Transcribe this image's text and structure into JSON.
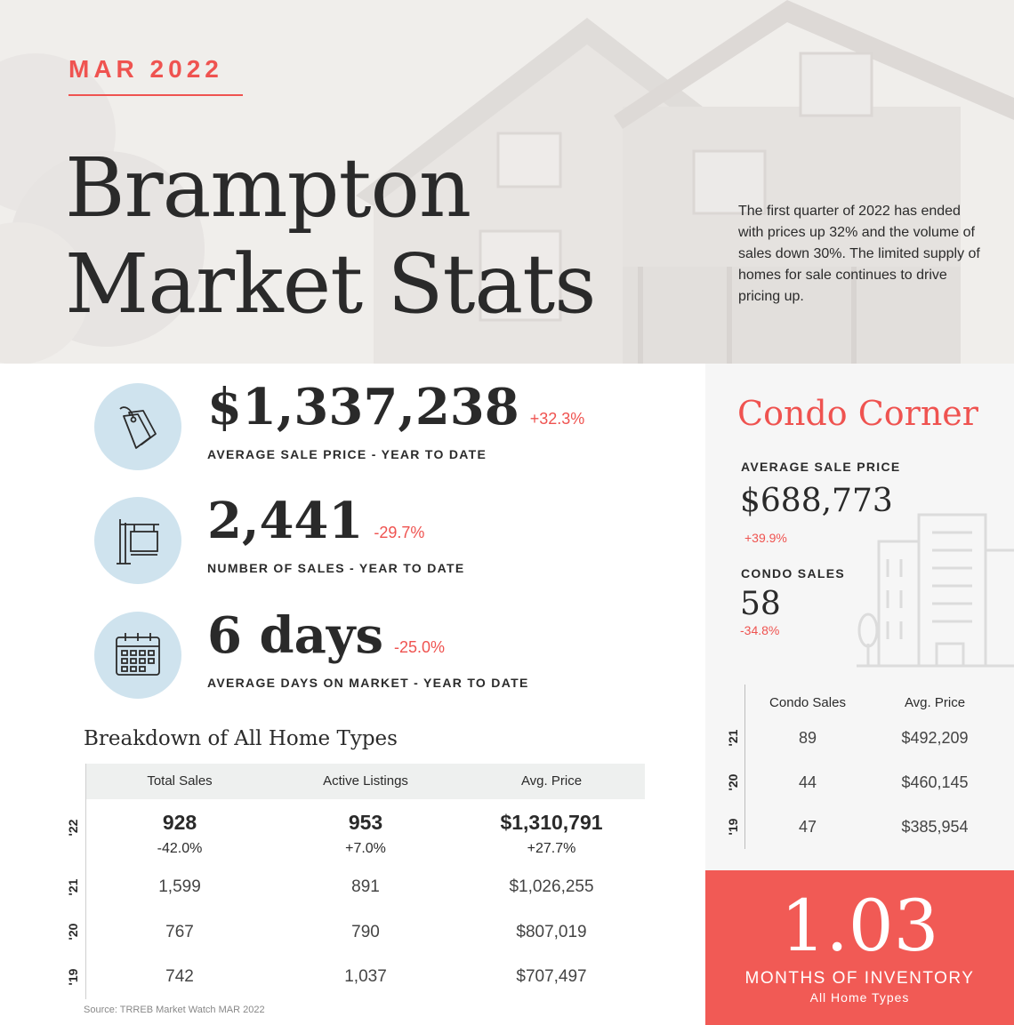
{
  "header": {
    "month": "MAR 2022",
    "title_line1": "Brampton",
    "title_line2": "Market Stats",
    "intro": "The first quarter of 2022 has ended with prices up 32% and the volume of sales down 30%. The limited supply of homes for sale continues to drive pricing up."
  },
  "kpis": [
    {
      "icon": "price-tag-icon",
      "value": "$1,337,238",
      "change": "+32.3%",
      "label": "AVERAGE SALE PRICE - YEAR TO DATE"
    },
    {
      "icon": "for-sale-sign-icon",
      "value": "2,441",
      "change": "-29.7%",
      "label": "NUMBER OF SALES - YEAR TO DATE"
    },
    {
      "icon": "calendar-icon",
      "value": "6 days",
      "change": "-25.0%",
      "label": "AVERAGE DAYS ON MARKET - YEAR TO DATE"
    }
  ],
  "breakdown": {
    "title": "Breakdown of All Home Types",
    "columns": [
      "Total Sales",
      "Active Listings",
      "Avg. Price"
    ],
    "current": {
      "year": "'22",
      "values": [
        "928",
        "953",
        "$1,310,791"
      ],
      "changes": [
        "-42.0%",
        "+7.0%",
        "+27.7%"
      ]
    },
    "rows": [
      {
        "year": "'21",
        "values": [
          "1,599",
          "891",
          "$1,026,255"
        ]
      },
      {
        "year": "'20",
        "values": [
          "767",
          "790",
          "$807,019"
        ]
      },
      {
        "year": "'19",
        "values": [
          "742",
          "1,037",
          "$707,497"
        ]
      }
    ],
    "source": "Source: TRREB Market Watch MAR 2022"
  },
  "condo": {
    "title": "Condo Corner",
    "avg_price_label": "AVERAGE SALE PRICE",
    "avg_price_value": "$688,773",
    "avg_price_change": "+39.9%",
    "sales_label": "CONDO SALES",
    "sales_value": "58",
    "sales_change": "-34.8%",
    "columns": [
      "Condo Sales",
      "Avg. Price"
    ],
    "rows": [
      {
        "year": "'21",
        "values": [
          "89",
          "$492,209"
        ]
      },
      {
        "year": "'20",
        "values": [
          "44",
          "$460,145"
        ]
      },
      {
        "year": "'19",
        "values": [
          "47",
          "$385,954"
        ]
      }
    ]
  },
  "inventory": {
    "value": "1.03",
    "label": "MONTHS OF INVENTORY",
    "sub": "All Home Types"
  },
  "colors": {
    "accent": "#ef5350",
    "icon_circle": "#cfe3ee",
    "inventory_bg": "#f15a55"
  }
}
